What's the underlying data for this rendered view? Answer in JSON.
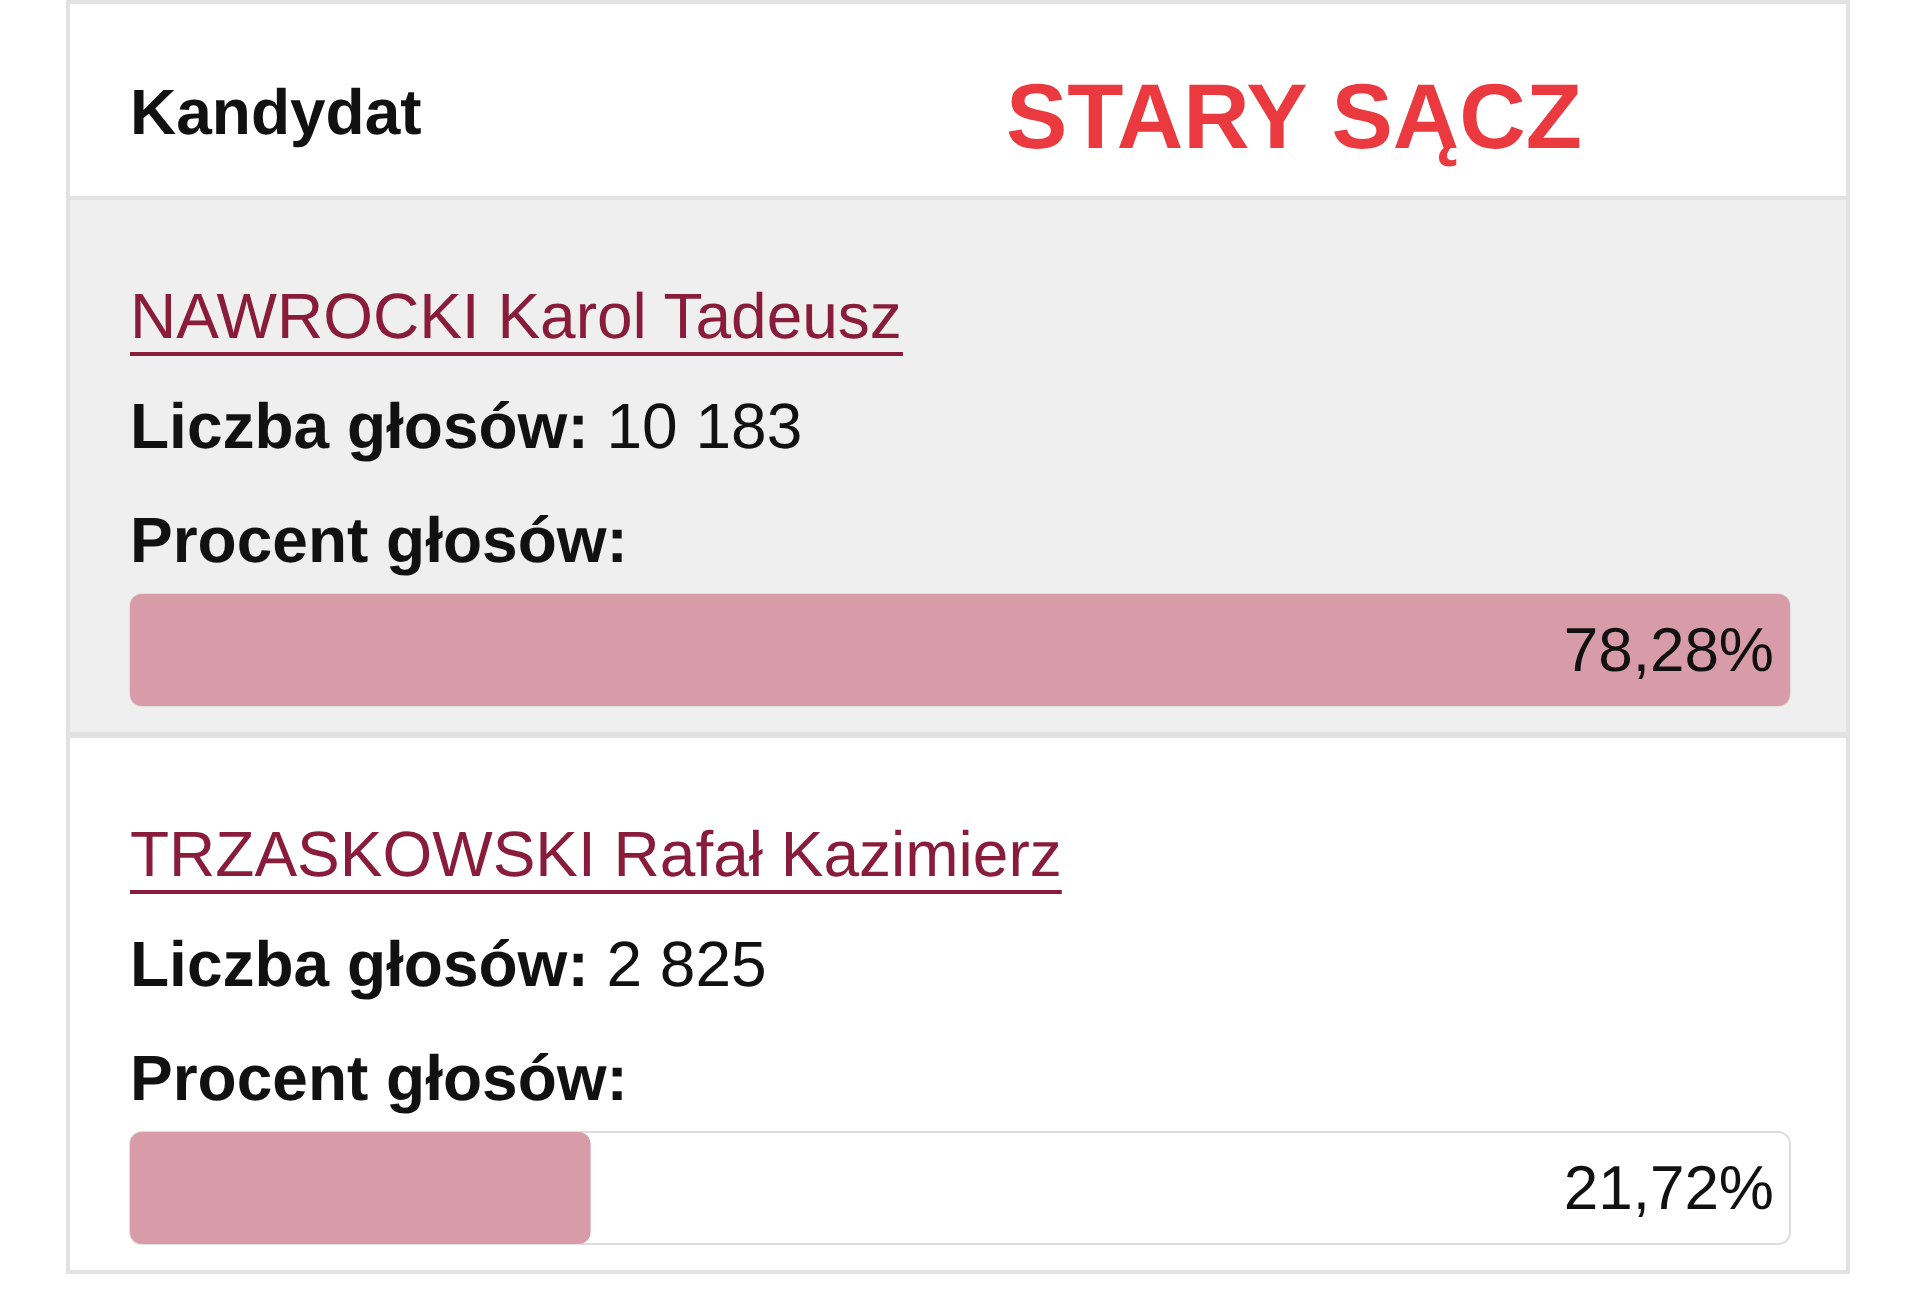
{
  "chart_data": {
    "type": "bar",
    "orientation": "horizontal",
    "title": "STARY SĄCZ",
    "categories": [
      "NAWROCKI Karol Tadeusz",
      "TRZASKOWSKI Rafał Kazimierz"
    ],
    "values": [
      78.28,
      21.72
    ],
    "value_labels": [
      "78,28%",
      "21,72%"
    ],
    "color": "#d89ca9",
    "tick_labels": false,
    "annotations": [
      "Kandydat",
      "Liczba głosów: 10 183",
      "Procent głosów:",
      "Liczba głosów: 2 825",
      "Procent głosów:"
    ]
  }
}
